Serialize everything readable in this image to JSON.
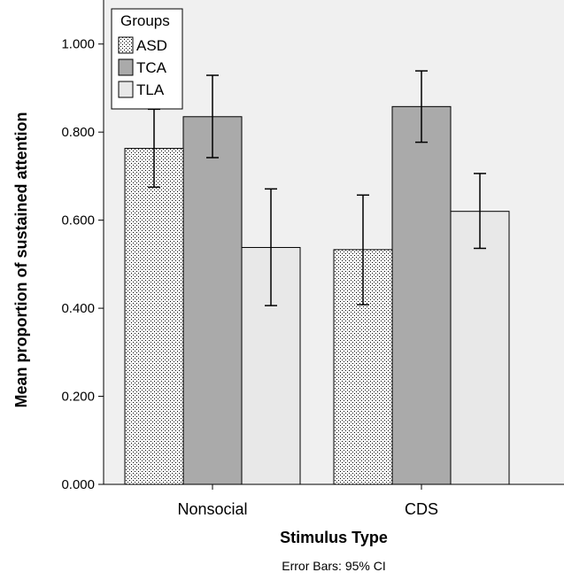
{
  "chart_data": {
    "type": "bar",
    "title": "",
    "xlabel": "Stimulus Type",
    "ylabel": "Mean proportion of sustained attention",
    "footnote": "Error Bars: 95% CI",
    "categories": [
      "Nonsocial",
      "CDS"
    ],
    "ylim": [
      0,
      1.1
    ],
    "yticks": [
      "0.000",
      "0.200",
      "0.400",
      "0.600",
      "0.800",
      "1.000"
    ],
    "legend": {
      "title": "Groups",
      "position": "top-left"
    },
    "series": [
      {
        "name": "ASD",
        "pattern": "dotted",
        "fill": "#ffffff",
        "values": [
          0.763,
          0.533
        ],
        "ci_low": [
          0.675,
          0.408
        ],
        "ci_high": [
          0.852,
          0.657
        ]
      },
      {
        "name": "TCA",
        "pattern": "solid",
        "fill": "#aaaaaa",
        "values": [
          0.835,
          0.858
        ],
        "ci_low": [
          0.742,
          0.777
        ],
        "ci_high": [
          0.929,
          0.939
        ]
      },
      {
        "name": "TLA",
        "pattern": "solid",
        "fill": "#e8e8e8",
        "values": [
          0.538,
          0.62
        ],
        "ci_low": [
          0.406,
          0.536
        ],
        "ci_high": [
          0.671,
          0.706
        ]
      }
    ],
    "plot_background": "#f0f0f0",
    "grid": false
  }
}
